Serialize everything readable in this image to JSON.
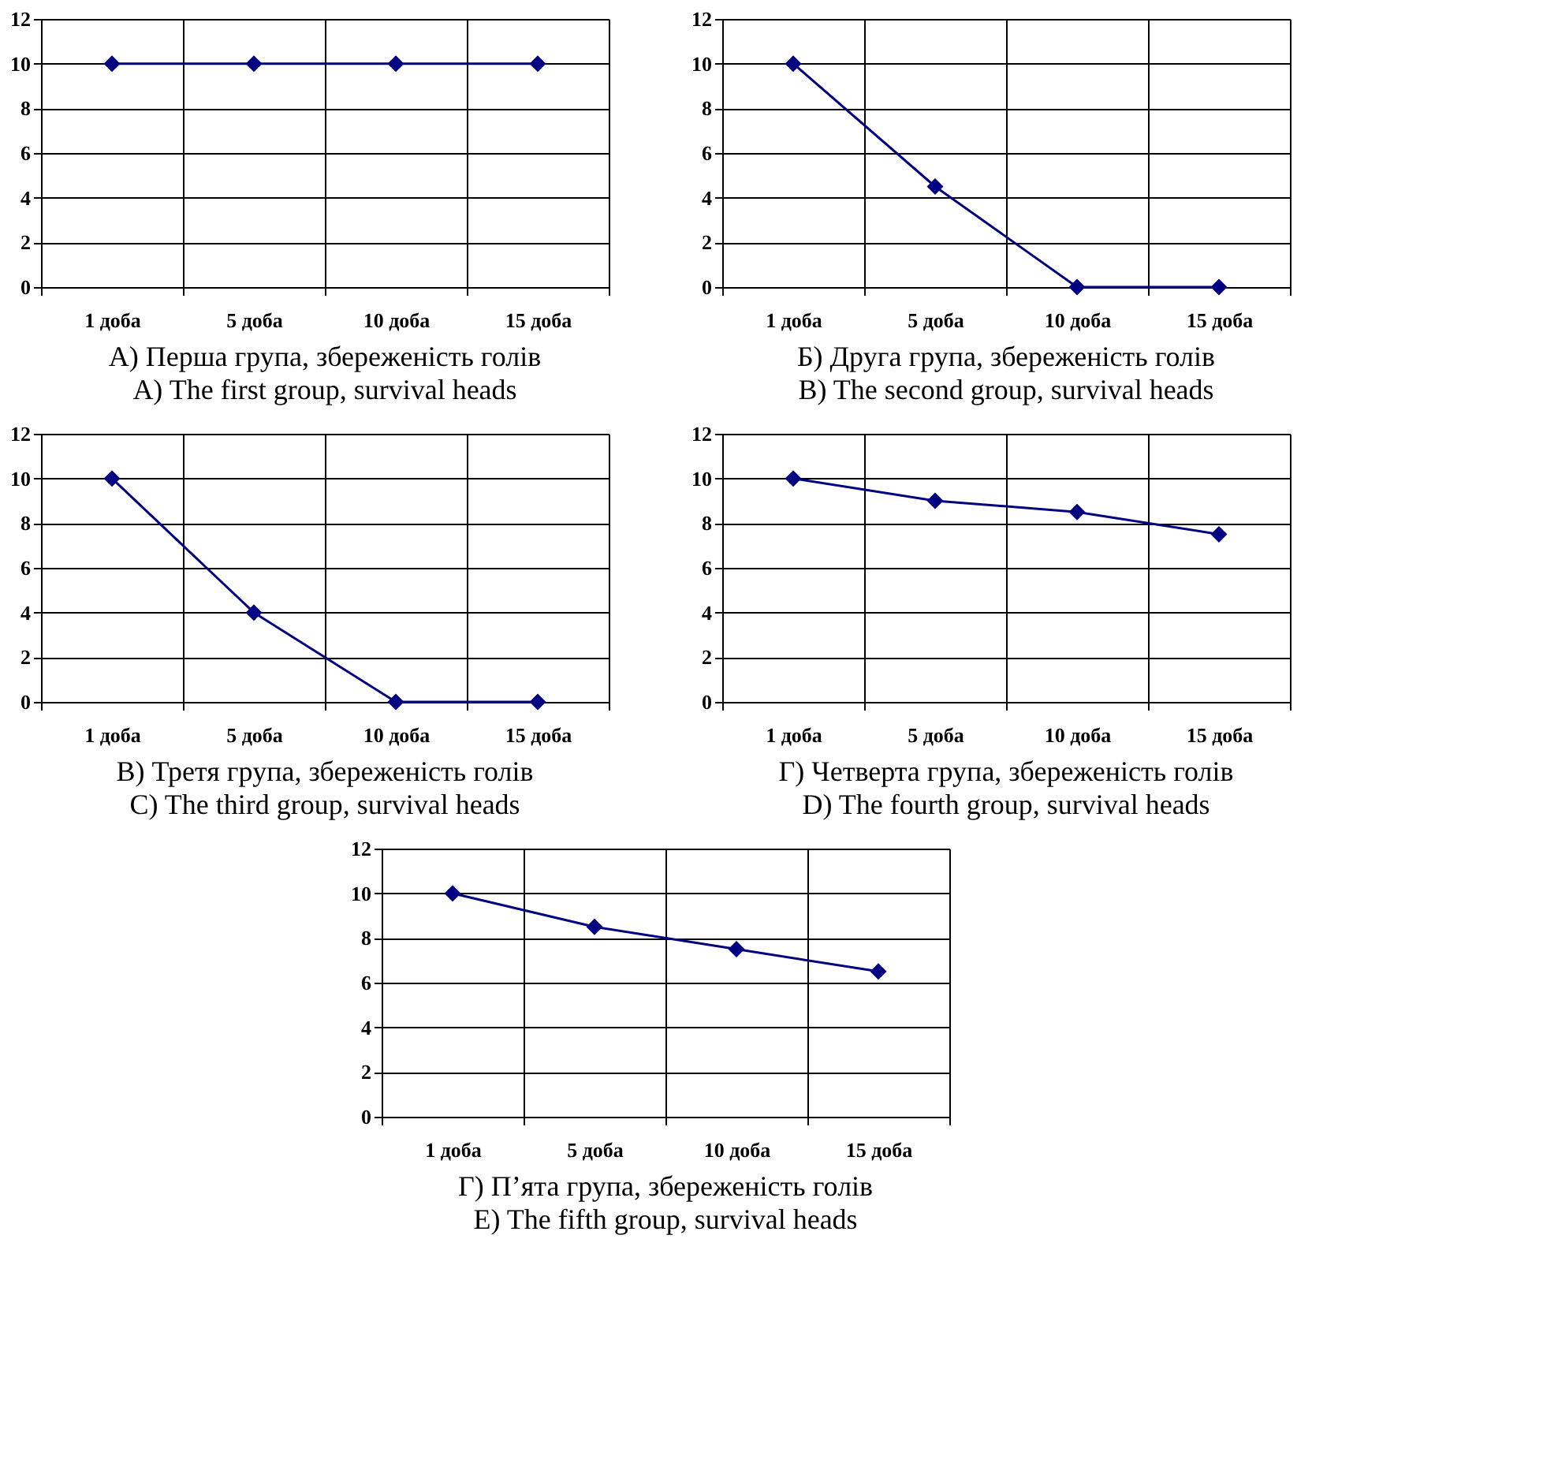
{
  "chart_data": [
    {
      "type": "line",
      "title": "А) Перша група, збереженість голів",
      "subtitle": "A) The first group, survival heads",
      "categories": [
        "1 доба",
        "5 доба",
        "10 доба",
        "15 доба"
      ],
      "series": [
        {
          "color": "#000080",
          "values": [
            10,
            10,
            10,
            10
          ]
        }
      ],
      "ylim": [
        0,
        12
      ],
      "yticks": [
        0,
        2,
        4,
        6,
        8,
        10,
        12
      ],
      "grid": true,
      "marker": "diamond",
      "legend": false
    },
    {
      "type": "line",
      "title": "Б) Друга група, збереженість голів",
      "subtitle": "B) The second group, survival heads",
      "categories": [
        "1 доба",
        "5 доба",
        "10 доба",
        "15 доба"
      ],
      "series": [
        {
          "color": "#000080",
          "values": [
            10,
            4.5,
            0,
            0
          ]
        }
      ],
      "ylim": [
        0,
        12
      ],
      "yticks": [
        0,
        2,
        4,
        6,
        8,
        10,
        12
      ],
      "grid": true,
      "marker": "diamond",
      "legend": false
    },
    {
      "type": "line",
      "title": "В) Третя група, збереженість голів",
      "subtitle": "C) The third group, survival heads",
      "categories": [
        "1 доба",
        "5 доба",
        "10 доба",
        "15 доба"
      ],
      "series": [
        {
          "color": "#000080",
          "values": [
            10,
            4,
            0,
            0
          ]
        }
      ],
      "ylim": [
        0,
        12
      ],
      "yticks": [
        0,
        2,
        4,
        6,
        8,
        10,
        12
      ],
      "grid": true,
      "marker": "diamond",
      "legend": false
    },
    {
      "type": "line",
      "title": "Г) Четверта група, збереженість голів",
      "subtitle": "D) The fourth group, survival heads",
      "categories": [
        "1 доба",
        "5 доба",
        "10 доба",
        "15 доба"
      ],
      "series": [
        {
          "color": "#000080",
          "values": [
            10,
            9,
            8.5,
            7.5
          ]
        }
      ],
      "ylim": [
        0,
        12
      ],
      "yticks": [
        0,
        2,
        4,
        6,
        8,
        10,
        12
      ],
      "grid": true,
      "marker": "diamond",
      "legend": false
    },
    {
      "type": "line",
      "title": "Г) П’ята група, збереженість голів",
      "subtitle": "E) The fifth group, survival heads",
      "categories": [
        "1 доба",
        "5 доба",
        "10 доба",
        "15 доба"
      ],
      "series": [
        {
          "color": "#000080",
          "values": [
            10,
            8.5,
            7.5,
            6.5
          ]
        }
      ],
      "ylim": [
        0,
        12
      ],
      "yticks": [
        0,
        2,
        4,
        6,
        8,
        10,
        12
      ],
      "grid": true,
      "marker": "diamond",
      "legend": false
    }
  ]
}
